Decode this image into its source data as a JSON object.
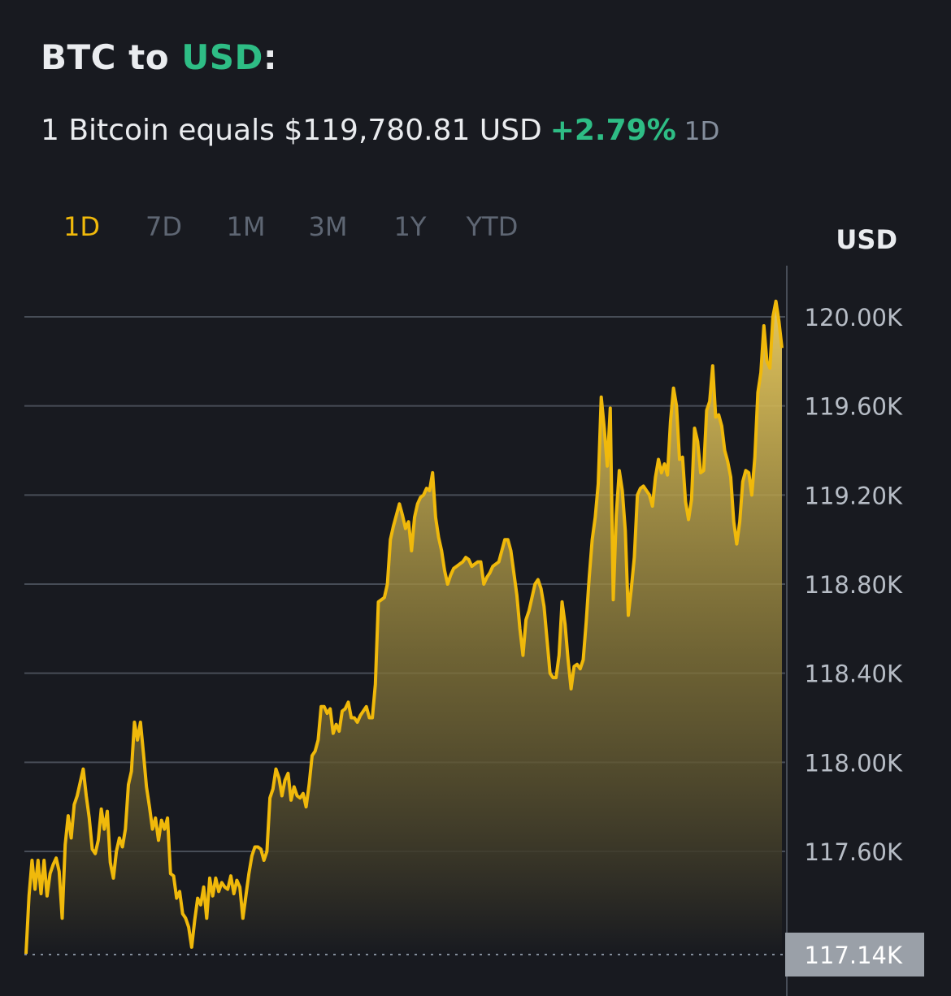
{
  "header": {
    "base": "BTC",
    "to_word": "to",
    "quote": "USD",
    "colon": ":",
    "equals_text": "1 Bitcoin equals $119,780.81 USD",
    "change": "+2.79%",
    "period": "1D"
  },
  "tabs": [
    "1D",
    "7D",
    "1M",
    "3M",
    "1Y",
    "YTD"
  ],
  "active_tab": "1D",
  "colors": {
    "background": "#181a20",
    "line": "#f0b90b",
    "positive": "#2ebd85",
    "grid": "#474d57"
  },
  "chart_data": {
    "type": "area",
    "currency_label": "USD",
    "y_ticks": [
      120000,
      119600,
      119200,
      118800,
      118400,
      118000,
      117600
    ],
    "y_tick_labels": [
      "120.00K",
      "119.60K",
      "119.20K",
      "118.80K",
      "118.40K",
      "118.00K",
      "117.60K"
    ],
    "min_label": "117.14K",
    "min_value": 117140,
    "ylim": [
      117140,
      120300
    ],
    "grid": true,
    "values": [
      117140,
      117400,
      117560,
      117430,
      117560,
      117410,
      117560,
      117400,
      117500,
      117540,
      117570,
      117510,
      117300,
      117630,
      117760,
      117660,
      117810,
      117850,
      117910,
      117970,
      117850,
      117750,
      117610,
      117590,
      117650,
      117790,
      117700,
      117780,
      117550,
      117480,
      117600,
      117660,
      117620,
      117700,
      117900,
      117960,
      118180,
      118100,
      118180,
      118040,
      117890,
      117800,
      117700,
      117750,
      117650,
      117740,
      117700,
      117750,
      117500,
      117490,
      117390,
      117420,
      117320,
      117300,
      117260,
      117170,
      117290,
      117390,
      117360,
      117440,
      117300,
      117480,
      117400,
      117480,
      117420,
      117460,
      117440,
      117430,
      117490,
      117410,
      117470,
      117440,
      117300,
      117400,
      117500,
      117580,
      117620,
      117620,
      117610,
      117560,
      117600,
      117840,
      117880,
      117970,
      117930,
      117850,
      117920,
      117950,
      117830,
      117890,
      117850,
      117840,
      117860,
      117800,
      117900,
      118030,
      118050,
      118100,
      118250,
      118250,
      118220,
      118240,
      118130,
      118170,
      118140,
      118230,
      118240,
      118270,
      118200,
      118200,
      118180,
      118210,
      118230,
      118250,
      118200,
      118200,
      118350,
      118720,
      118730,
      118740,
      118800,
      119000,
      119060,
      119110,
      119160,
      119110,
      119050,
      119080,
      118950,
      119100,
      119160,
      119190,
      119200,
      119230,
      119220,
      119300,
      119100,
      119010,
      118950,
      118860,
      118800,
      118840,
      118870,
      118880,
      118890,
      118900,
      118920,
      118910,
      118880,
      118890,
      118900,
      118900,
      118800,
      118830,
      118850,
      118880,
      118890,
      118900,
      118950,
      119000,
      119000,
      118950,
      118850,
      118750,
      118600,
      118480,
      118640,
      118680,
      118740,
      118800,
      118820,
      118780,
      118700,
      118550,
      118400,
      118380,
      118380,
      118480,
      118720,
      118620,
      118460,
      118330,
      118430,
      118440,
      118420,
      118460,
      118630,
      118830,
      119000,
      119100,
      119250,
      119640,
      119500,
      119330,
      119590,
      118730,
      119110,
      119310,
      119220,
      119040,
      118660,
      118780,
      118920,
      119200,
      119230,
      119240,
      119220,
      119200,
      119150,
      119280,
      119360,
      119300,
      119340,
      119290,
      119530,
      119680,
      119600,
      119360,
      119370,
      119170,
      119090,
      119180,
      119500,
      119440,
      119300,
      119310,
      119580,
      119620,
      119780,
      119550,
      119560,
      119510,
      119400,
      119350,
      119280,
      119080,
      118980,
      119080,
      119260,
      119310,
      119300,
      119200,
      119370,
      119660,
      119750,
      119960,
      119800,
      119770,
      120000,
      120070,
      119980,
      119860
    ]
  }
}
